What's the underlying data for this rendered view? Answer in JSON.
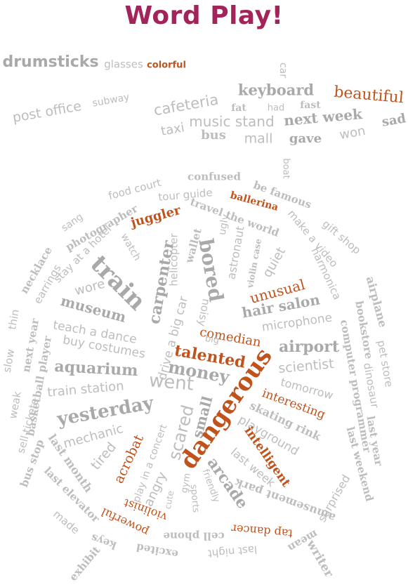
{
  "title": "Word Play!",
  "words": {
    "drumsticks": "drumsticks",
    "glasses": "glasses",
    "colorful": "colorful",
    "car": "car",
    "post_office": "post office",
    "subway": "subway",
    "cafeteria": "cafeteria",
    "keyboard": "keyboard",
    "beautiful": "beautiful",
    "fat": "fat",
    "had": "had",
    "fast": "fast",
    "music_stand": "music stand",
    "next_week": "next week",
    "sad": "sad",
    "taxi": "taxi",
    "bus": "bus",
    "mall": "mall",
    "gave": "gave",
    "won": "won",
    "boat": "boat",
    "food_court": "food court",
    "confused": "confused",
    "be_famous": "be famous",
    "tour_guide": "tour guide",
    "ballerina": "ballerina",
    "sang": "sang",
    "photographer": "photographer",
    "juggler": "juggler",
    "travel_the_world": "travel the world",
    "gift_shop": "gift shop",
    "make_a_video": "make a video",
    "necklace": "necklace",
    "stay_at_a_hotel": "stay at a hotel",
    "watch": "watch",
    "helicopter": "helicopter",
    "wallet": "wallet",
    "ugly": "ugly",
    "astronaut": "astronaut",
    "violin_case": "violin case",
    "quiet": "quiet",
    "harmonica": "harmonica",
    "airplane": "airplane",
    "earrings": "earrings",
    "train": "train",
    "carpenter": "carpenter",
    "bored": "bored",
    "wore": "wore",
    "drive_a_big_car": "drive a big car",
    "noisy": "noisy",
    "unusual": "unusual",
    "bookstore": "bookstore",
    "thin": "thin",
    "museum": "museum",
    "hair_salon": "hair salon",
    "microphone": "microphone",
    "next_year": "next year",
    "teach_a_dance": "teach a dance",
    "comedian": "comedian",
    "pet_store": "pet store",
    "basketball_player": "basketball player",
    "big": "big",
    "airport": "airport",
    "computer_programmer": "computer programmer",
    "buy_costumes": "buy costumes",
    "talented": "talented",
    "slow": "slow",
    "aquarium": "aquarium",
    "money": "money",
    "scientist": "scientist",
    "dinosaur": "dinosaur",
    "went": "went",
    "dangerous": "dangerous",
    "train_station": "train station",
    "tomorrow": "tomorrow",
    "weak": "weak",
    "sell_tickets": "sell tickets",
    "interesting": "interesting",
    "yesterday": "yesterday",
    "small": "small",
    "skating_rink": "skating rink",
    "last_year": "last year",
    "scared": "scared",
    "playground": "playground",
    "mechanic": "mechanic",
    "intelligent": "intelligent",
    "last_weekend": "last weekend",
    "bus_stop": "bus stop",
    "acrobat": "acrobat",
    "play_in_a_concert": "play in a concert",
    "last_month": "last month",
    "tired": "tired",
    "arcade": "arcade",
    "last_week": "last week",
    "surprised": "surprised",
    "last_elevator": "last elevator",
    "angry": "angry",
    "cute": "cute",
    "gym": "gym",
    "friendly": "friendly",
    "amusement_park": "amusement park",
    "sports": "sports",
    "made": "made",
    "violinist": "violinist",
    "powerful": "powerful",
    "cell_phone": "cell phone",
    "tap_dancer": "tap dancer",
    "keys": "keys",
    "mean": "mean",
    "exhibit": "exhibit",
    "excited": "excited",
    "last_night": "last night",
    "writer": "writer"
  }
}
